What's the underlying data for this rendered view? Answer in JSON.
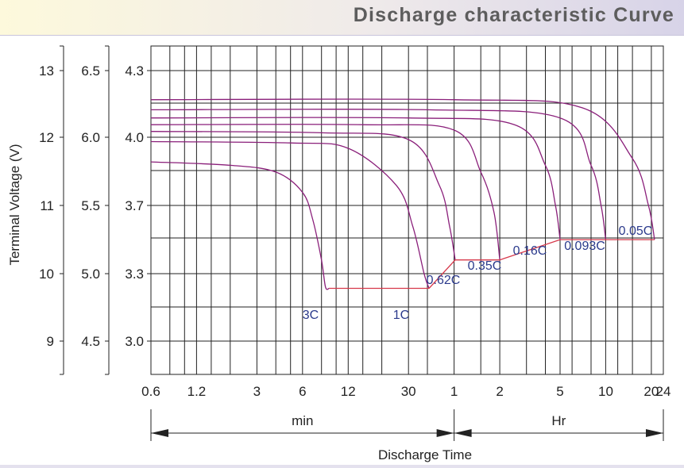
{
  "header": {
    "title": "Discharge characteristic Curve"
  },
  "chart_data": {
    "type": "line",
    "title": "Discharge characteristic Curve",
    "xlabel": "Discharge Time",
    "ylabel": "Terminal Voltage (V)",
    "x_scale": "log",
    "x_unit_sections": [
      {
        "label": "min",
        "from": "0.6 min",
        "to": "1 Hr"
      },
      {
        "label": "Hr",
        "from": "1 Hr",
        "to": "24 Hr"
      }
    ],
    "x_ticks": [
      {
        "label": "0.6",
        "minutes": 0.6
      },
      {
        "label": "1.2",
        "minutes": 1.2
      },
      {
        "label": "3",
        "minutes": 3
      },
      {
        "label": "6",
        "minutes": 6
      },
      {
        "label": "12",
        "minutes": 12
      },
      {
        "label": "30",
        "minutes": 30
      },
      {
        "label": "1",
        "minutes": 60
      },
      {
        "label": "2",
        "minutes": 120
      },
      {
        "label": "5",
        "minutes": 300
      },
      {
        "label": "10",
        "minutes": 600
      },
      {
        "label": "20",
        "minutes": 1200
      },
      {
        "label": "24",
        "minutes": 1440
      }
    ],
    "y_axes": [
      {
        "ticks": [
          "13",
          "12",
          "11",
          "10",
          "9"
        ],
        "values": [
          13,
          12,
          11,
          10,
          9
        ]
      },
      {
        "ticks": [
          "6.5",
          "6.0",
          "5.5",
          "5.0",
          "4.5"
        ],
        "values": [
          6.5,
          6.0,
          5.5,
          5.0,
          4.5
        ]
      },
      {
        "ticks": [
          "4.3",
          "4.0",
          "3.7",
          "3.3",
          "3.0"
        ],
        "values": [
          4.3,
          4.0,
          3.7,
          3.3,
          3.0
        ]
      }
    ],
    "ylim": [
      8.55,
      13.2
    ],
    "grid": true,
    "series": [
      {
        "name": "3C",
        "x": [
          0.6,
          2,
          4,
          6,
          7,
          8,
          8.5,
          9
        ],
        "y": [
          11.65,
          11.6,
          11.5,
          11.2,
          10.8,
          10.2,
          9.8,
          9.78
        ]
      },
      {
        "name": "1C",
        "x": [
          0.6,
          5,
          12,
          25,
          32,
          38,
          41
        ],
        "y": [
          11.95,
          11.93,
          11.85,
          11.3,
          10.7,
          10.0,
          9.78
        ]
      },
      {
        "name": "0.62C",
        "x": [
          0.6,
          8,
          30,
          48,
          56,
          61
        ],
        "y": [
          12.1,
          12.08,
          11.98,
          11.3,
          10.7,
          10.2
        ]
      },
      {
        "name": "0.35C",
        "x": [
          0.6,
          15,
          60,
          90,
          110,
          120
        ],
        "y": [
          12.2,
          12.2,
          12.12,
          11.5,
          10.9,
          10.2
        ]
      },
      {
        "name": "0.16C",
        "x": [
          0.6,
          30,
          150,
          240,
          280,
          300
        ],
        "y": [
          12.3,
          12.3,
          12.2,
          11.6,
          11.0,
          10.5
        ]
      },
      {
        "name": "0.093C",
        "x": [
          0.6,
          40,
          300,
          480,
          560,
          600
        ],
        "y": [
          12.42,
          12.42,
          12.3,
          11.6,
          11.0,
          10.5
        ]
      },
      {
        "name": "0.05C",
        "x": [
          0.6,
          60,
          420,
          900,
          1150,
          1260
        ],
        "y": [
          12.57,
          12.57,
          12.45,
          11.7,
          11.0,
          10.5
        ]
      }
    ],
    "cutoff_line": {
      "x": [
        9,
        41,
        61,
        120,
        300,
        1260
      ],
      "y": [
        9.78,
        9.78,
        10.2,
        10.2,
        10.5,
        10.5
      ]
    },
    "series_labels": [
      "3C",
      "1C",
      "0.62C",
      "0.35C",
      "0.16C",
      "0.093C",
      "0.05C"
    ],
    "colors": {
      "curve": "#8a1f7a",
      "cutoff": "#d6384a",
      "grid": "#222222",
      "label": "#2b3a8c"
    }
  }
}
